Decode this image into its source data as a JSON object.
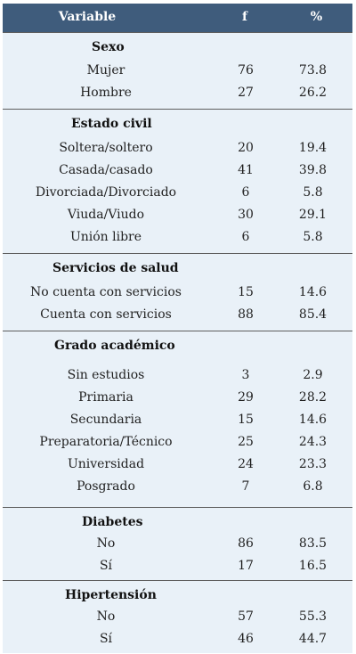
{
  "header": {
    "variable": "Variable",
    "f": "f",
    "percent": "%"
  },
  "sections": [
    {
      "title": "Sexo",
      "rows": [
        {
          "label": "Mujer",
          "f": "76",
          "pct": "73.8"
        },
        {
          "label": "Hombre",
          "f": "27",
          "pct": "26.2"
        }
      ]
    },
    {
      "title": "Estado civil",
      "rows": [
        {
          "label": "Soltera/soltero",
          "f": "20",
          "pct": "19.4"
        },
        {
          "label": "Casada/casado",
          "f": "41",
          "pct": "39.8"
        },
        {
          "label": "Divorciada/Divorciado",
          "f": "6",
          "pct": "5.8"
        },
        {
          "label": "Viuda/Viudo",
          "f": "30",
          "pct": "29.1"
        },
        {
          "label": "Unión libre",
          "f": "6",
          "pct": "5.8"
        }
      ]
    },
    {
      "title": "Servicios de salud",
      "rows": [
        {
          "label": "No cuenta con servicios",
          "f": "15",
          "pct": "14.6"
        },
        {
          "label": "Cuenta con servicios",
          "f": "88",
          "pct": "85.4"
        }
      ]
    },
    {
      "title": "Grado académico",
      "rows": [
        {
          "label": "Sin estudios",
          "f": "3",
          "pct": "2.9"
        },
        {
          "label": "Primaria",
          "f": "29",
          "pct": "28.2"
        },
        {
          "label": "Secundaria",
          "f": "15",
          "pct": "14.6"
        },
        {
          "label": "Preparatoria/Técnico",
          "f": "25",
          "pct": "24.3"
        },
        {
          "label": "Universidad",
          "f": "24",
          "pct": "23.3"
        },
        {
          "label": "Posgrado",
          "f": "7",
          "pct": "6.8"
        }
      ]
    },
    {
      "title": "Diabetes",
      "rows": [
        {
          "label": "No",
          "f": "86",
          "pct": "83.5"
        },
        {
          "label": "Sí",
          "f": "17",
          "pct": "16.5"
        }
      ]
    },
    {
      "title": "Hipertensión",
      "rows": [
        {
          "label": "No",
          "f": "57",
          "pct": "55.3"
        },
        {
          "label": "Sí",
          "f": "46",
          "pct": "44.7"
        }
      ]
    }
  ]
}
